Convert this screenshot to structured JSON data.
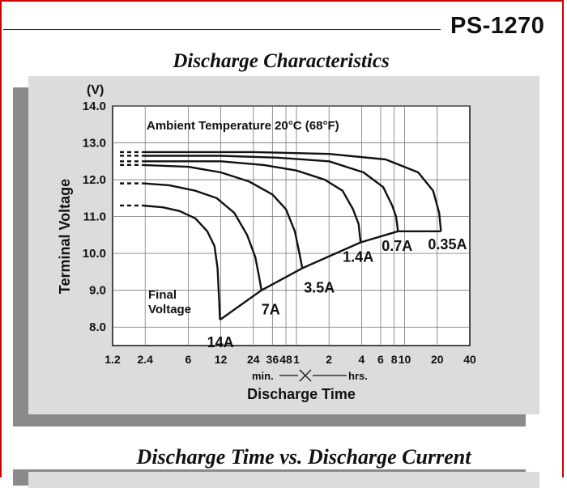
{
  "header": {
    "model": "PS-1270",
    "section_title": "Discharge Characteristics",
    "next_section_title": "Discharge Time vs. Discharge Current"
  },
  "chart_data": {
    "type": "line",
    "y_unit": "(V)",
    "ylabel": "Terminal Voltage",
    "xlabel": "Discharge Time",
    "x_unit_min": "min.",
    "x_unit_hrs": "hrs.",
    "x_scale": "log",
    "ylim": [
      7.5,
      14.0
    ],
    "yticks": [
      "14.0",
      "13.0",
      "12.0",
      "11.0",
      "10.0",
      "9.0",
      "8.0"
    ],
    "xtick_labels": [
      "1.2",
      "2.4",
      "6",
      "12",
      "24",
      "36",
      "48",
      "1",
      "2",
      "4",
      "6",
      "8",
      "10",
      "20",
      "40"
    ],
    "xtick_minutes": [
      1.2,
      2.4,
      6,
      12,
      24,
      36,
      48,
      60,
      120,
      240,
      360,
      480,
      600,
      1200,
      2400
    ],
    "annotation": "Ambient Temperature 20°C (68°F)",
    "final_voltage_label": [
      "Final",
      "Voltage"
    ],
    "grid": true,
    "series": [
      {
        "name": "14A",
        "x_min": [
          2.3,
          3.5,
          5,
          7,
          9,
          10.5,
          11.2,
          11.6,
          11.8
        ],
        "y": [
          11.3,
          11.25,
          11.15,
          10.95,
          10.6,
          10.2,
          9.6,
          8.7,
          8.2
        ]
      },
      {
        "name": "7A",
        "x_min": [
          2.3,
          4,
          7,
          11,
          16,
          21,
          25,
          27,
          28.5
        ],
        "y": [
          11.9,
          11.85,
          11.7,
          11.5,
          11.1,
          10.5,
          9.9,
          9.4,
          9.0
        ]
      },
      {
        "name": "3.5A",
        "x_min": [
          2.3,
          6,
          12,
          22,
          36,
          48,
          58,
          64,
          68
        ],
        "y": [
          12.4,
          12.35,
          12.2,
          11.95,
          11.6,
          11.2,
          10.6,
          10.0,
          9.6
        ]
      },
      {
        "name": "1.4A",
        "x_min": [
          2.3,
          12,
          30,
          60,
          110,
          160,
          200,
          225,
          235
        ],
        "y": [
          12.5,
          12.5,
          12.4,
          12.25,
          12.0,
          11.7,
          11.2,
          10.8,
          10.3
        ]
      },
      {
        "name": "0.7A",
        "x_min": [
          2.3,
          12,
          40,
          120,
          250,
          380,
          460,
          500,
          520
        ],
        "y": [
          12.65,
          12.65,
          12.6,
          12.5,
          12.2,
          11.8,
          11.3,
          11.0,
          10.6
        ]
      },
      {
        "name": "0.35A",
        "x_min": [
          2.3,
          24,
          120,
          400,
          800,
          1100,
          1250,
          1300
        ],
        "y": [
          12.75,
          12.75,
          12.7,
          12.55,
          12.2,
          11.7,
          11.1,
          10.6
        ]
      }
    ],
    "final_voltage_curve": {
      "x_min": [
        11.8,
        28.5,
        68,
        235,
        520,
        1300
      ],
      "y": [
        8.2,
        9.0,
        9.6,
        10.3,
        10.6,
        10.6
      ]
    }
  }
}
